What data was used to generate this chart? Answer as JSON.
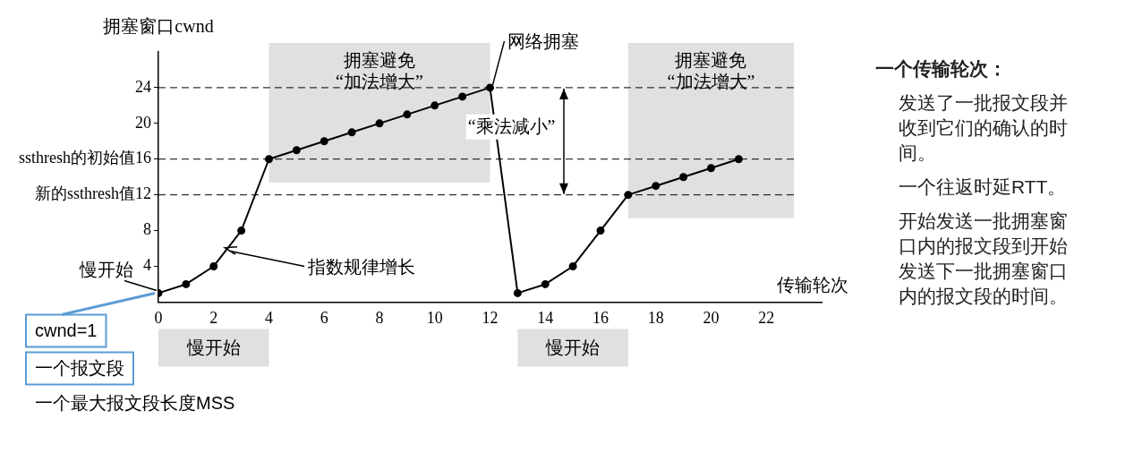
{
  "chart_data": {
    "type": "line",
    "ylabel": "拥塞窗口cwnd",
    "xlabel": "传输轮次",
    "series": [
      {
        "color": "#000000",
        "x": [
          0,
          1,
          2,
          3,
          4,
          5,
          6,
          7,
          8,
          9,
          10,
          11,
          12,
          13,
          14,
          15,
          16,
          17,
          18,
          19,
          20,
          21
        ],
        "values": [
          1,
          2,
          4,
          8,
          16,
          17,
          18,
          19,
          20,
          21,
          22,
          23,
          24,
          1,
          2,
          4,
          8,
          12,
          13,
          14,
          15,
          16
        ]
      }
    ],
    "xlim": [
      0,
      24
    ],
    "xticks": [
      0,
      2,
      4,
      6,
      8,
      10,
      12,
      14,
      16,
      18,
      20,
      22
    ],
    "ylim": [
      0,
      28
    ],
    "yticks": [
      4,
      8,
      {
        "value": 12,
        "label": "新的ssthresh值12"
      },
      {
        "value": 16,
        "label": "ssthresh的初始值16"
      },
      20,
      24
    ],
    "grid": false,
    "legend": false,
    "marker": "circle",
    "line_style": "solid",
    "ref_lines": [
      {
        "axis": "y",
        "value": 24,
        "line_style": "dashed",
        "color": "#000000"
      },
      {
        "axis": "y",
        "value": 16,
        "line_style": "dashed",
        "color": "#000000"
      },
      {
        "axis": "y",
        "value": 12,
        "line_style": "dashed",
        "color": "#000000"
      }
    ],
    "bands": [
      {
        "axis": "x",
        "from": 4,
        "to": 12,
        "label": "拥塞避免 “加法增大”",
        "color": "#e0e0e0"
      },
      {
        "axis": "x",
        "from": 17,
        "to": 23,
        "label": "拥塞避免 “加法增大”",
        "color": "#e0e0e0"
      }
    ],
    "annotations": [
      {
        "text": "慢开始",
        "x": 0,
        "y": 1
      },
      {
        "text": "指数规律增长",
        "x": 2.5,
        "y": 6
      },
      {
        "text": "网络拥塞",
        "x": 12,
        "y": 24
      },
      "“乘法减小”",
      "慢开始",
      "慢开始",
      "cwnd=1",
      "一个报文段",
      "一个最大报文段长度MSS",
      "一个传输轮次：",
      "发送了一批报文段并收到它们的确认的时间。",
      "一个往返时延RTT。",
      "开始发送一批拥塞窗口内的报文段到开始发送下一批拥塞窗口内的报文段的时间。"
    ]
  }
}
